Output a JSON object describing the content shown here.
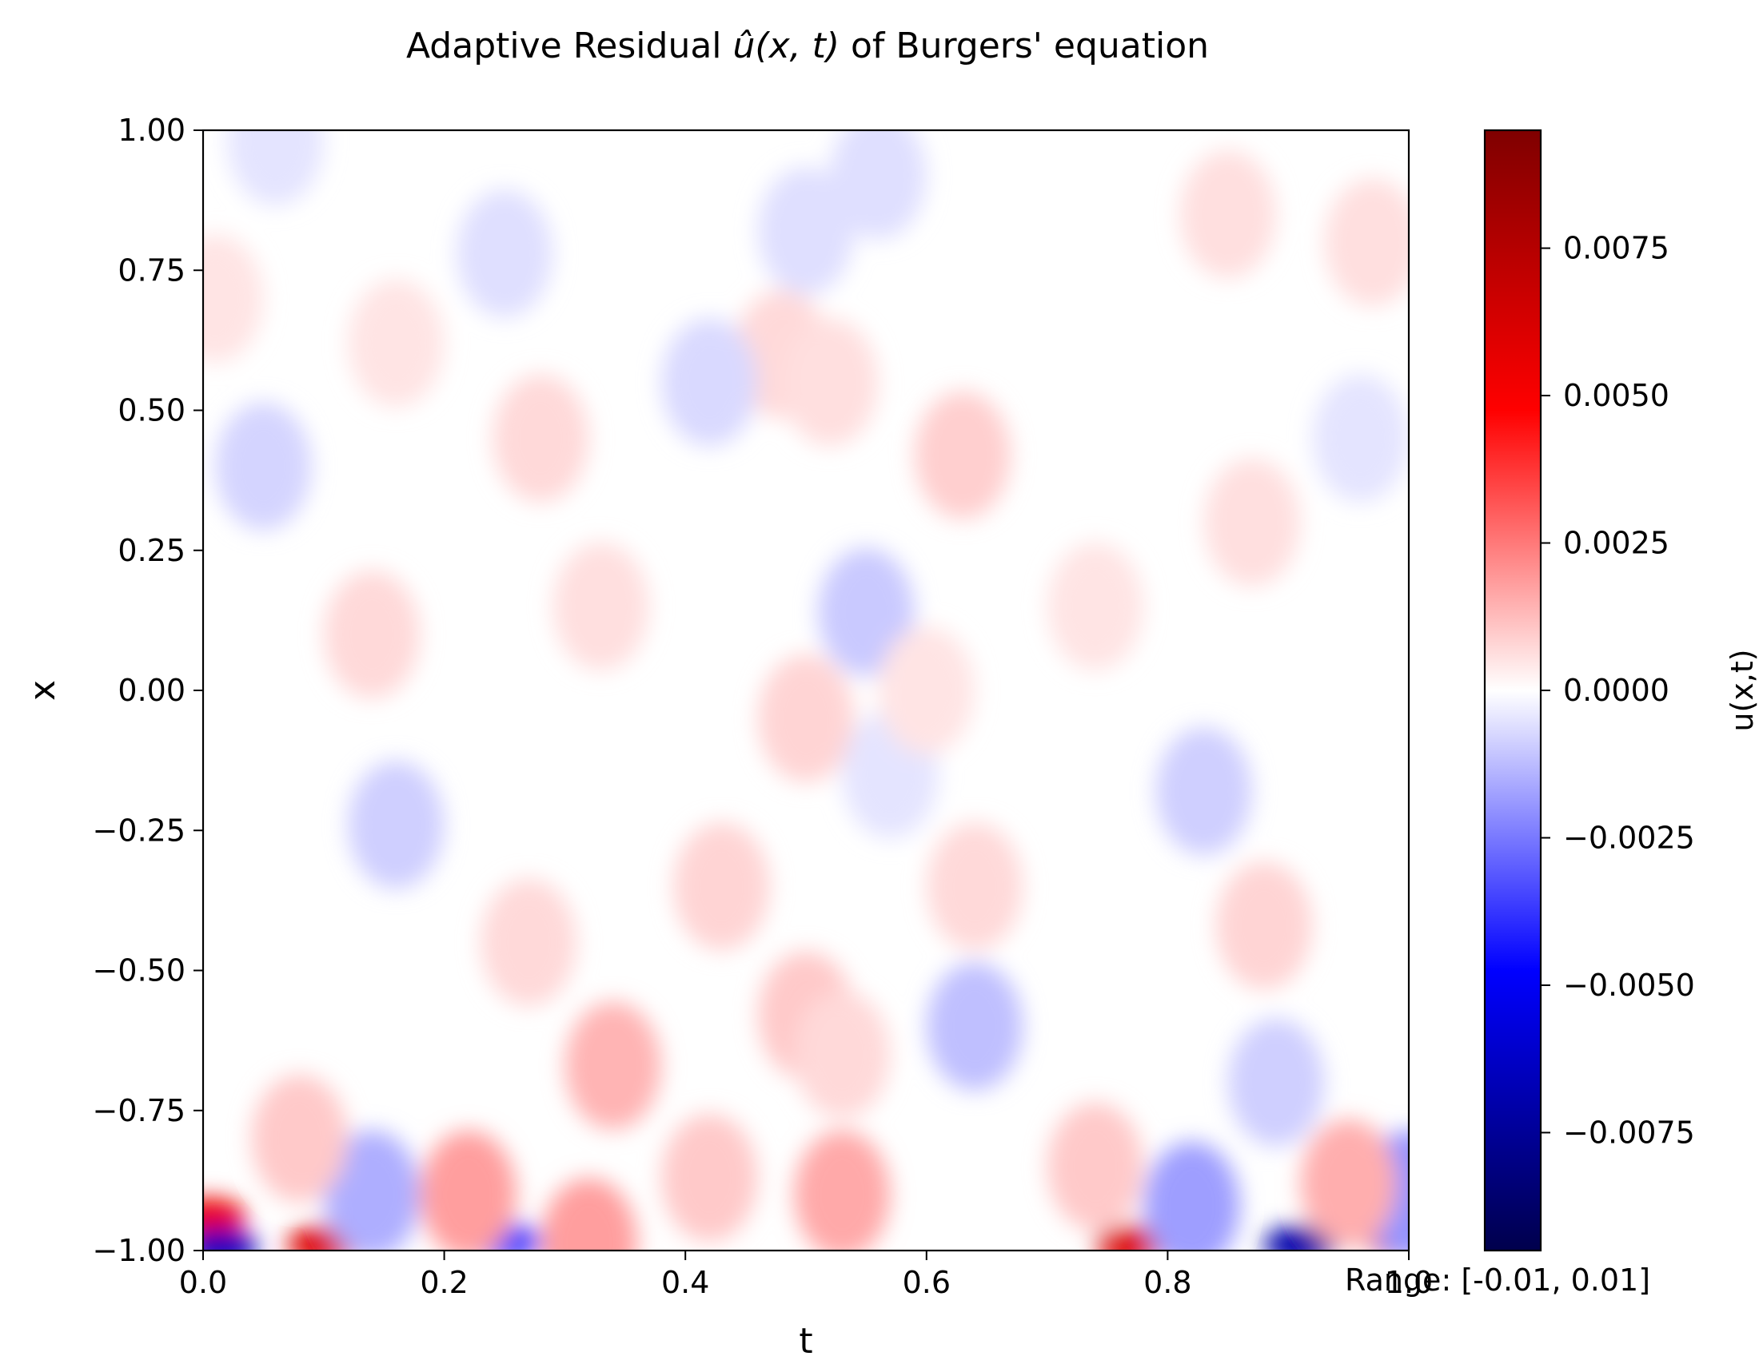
{
  "chart_data": {
    "type": "heatmap",
    "title_prefix": "Adaptive Residual ",
    "title_math": "û(x, t)",
    "title_suffix": " of Burgers' equation",
    "xlabel": "t",
    "ylabel": "x",
    "xlim": [
      0.0,
      1.0
    ],
    "ylim": [
      -1.0,
      1.0
    ],
    "x_ticks": [
      {
        "value": 0.0,
        "label": "0.0"
      },
      {
        "value": 0.2,
        "label": "0.2"
      },
      {
        "value": 0.4,
        "label": "0.4"
      },
      {
        "value": 0.6,
        "label": "0.6"
      },
      {
        "value": 0.8,
        "label": "0.8"
      },
      {
        "value": 1.0,
        "label": "1.0"
      }
    ],
    "y_ticks": [
      {
        "value": 1.0,
        "label": "1.00"
      },
      {
        "value": 0.75,
        "label": "0.75"
      },
      {
        "value": 0.5,
        "label": "0.50"
      },
      {
        "value": 0.25,
        "label": "0.25"
      },
      {
        "value": 0.0,
        "label": "0.00"
      },
      {
        "value": -0.25,
        "label": "−0.25"
      },
      {
        "value": -0.5,
        "label": "−0.50"
      },
      {
        "value": -0.75,
        "label": "−0.75"
      },
      {
        "value": -1.0,
        "label": "−1.00"
      }
    ],
    "colorbar": {
      "label": "u(x,t)",
      "colormap": "seismic",
      "vmin": -0.0095,
      "vmax": 0.0095,
      "ticks": [
        {
          "value": 0.0075,
          "label": "0.0075"
        },
        {
          "value": 0.005,
          "label": "0.0050"
        },
        {
          "value": 0.0025,
          "label": "0.0025"
        },
        {
          "value": 0.0,
          "label": "0.0000"
        },
        {
          "value": -0.0025,
          "label": "−0.0025"
        },
        {
          "value": -0.005,
          "label": "−0.0050"
        },
        {
          "value": -0.0075,
          "label": "−0.0075"
        }
      ],
      "colors": [
        "#00004c",
        "#0000ff",
        "#ffffff",
        "#ff0000",
        "#7f0000"
      ]
    },
    "annotation": "Range: [-0.01, 0.01]",
    "blobs": [
      {
        "t": 0.005,
        "x": -0.94,
        "value": 0.0055
      },
      {
        "t": 0.015,
        "x": -0.995,
        "value": -0.0065
      },
      {
        "t": 0.1,
        "x": -0.99,
        "value": 0.006
      },
      {
        "t": 0.25,
        "x": -0.985,
        "value": -0.0035
      },
      {
        "t": 0.32,
        "x": -0.985,
        "value": 0.0018
      },
      {
        "t": 0.77,
        "x": -0.99,
        "value": 0.006
      },
      {
        "t": 0.91,
        "x": -0.99,
        "value": -0.007
      },
      {
        "t": 0.995,
        "x": -0.98,
        "value": 0.006
      },
      {
        "t": 1.0,
        "x": -0.9,
        "value": -0.002
      },
      {
        "t": 0.22,
        "x": -0.9,
        "value": 0.0018
      },
      {
        "t": 0.14,
        "x": -0.9,
        "value": -0.0015
      },
      {
        "t": 0.53,
        "x": -0.9,
        "value": 0.0016
      },
      {
        "t": 0.42,
        "x": -0.87,
        "value": 0.001
      },
      {
        "t": 0.74,
        "x": -0.85,
        "value": 0.001
      },
      {
        "t": 0.82,
        "x": -0.92,
        "value": -0.0018
      },
      {
        "t": 0.95,
        "x": -0.88,
        "value": 0.0015
      },
      {
        "t": 0.08,
        "x": -0.8,
        "value": 0.001
      },
      {
        "t": 0.34,
        "x": -0.67,
        "value": 0.0014
      },
      {
        "t": 0.5,
        "x": -0.58,
        "value": 0.001
      },
      {
        "t": 0.64,
        "x": -0.6,
        "value": -0.0012
      },
      {
        "t": 0.64,
        "x": -0.35,
        "value": 0.0007
      },
      {
        "t": 0.89,
        "x": -0.7,
        "value": -0.0009
      },
      {
        "t": 0.16,
        "x": -0.24,
        "value": -0.0009
      },
      {
        "t": 0.27,
        "x": -0.45,
        "value": 0.0007
      },
      {
        "t": 0.43,
        "x": -0.35,
        "value": 0.0008
      },
      {
        "t": 0.53,
        "x": -0.65,
        "value": 0.0007
      },
      {
        "t": 0.83,
        "x": -0.18,
        "value": -0.0009
      },
      {
        "t": 0.88,
        "x": -0.42,
        "value": 0.0008
      },
      {
        "t": 0.5,
        "x": -0.05,
        "value": 0.0008
      },
      {
        "t": 0.55,
        "x": 0.14,
        "value": -0.001
      },
      {
        "t": 0.48,
        "x": 0.6,
        "value": 0.0007
      },
      {
        "t": 0.42,
        "x": 0.55,
        "value": -0.0007
      },
      {
        "t": 0.52,
        "x": 0.55,
        "value": 0.0006
      },
      {
        "t": 0.63,
        "x": 0.42,
        "value": 0.0009
      },
      {
        "t": 0.05,
        "x": 0.4,
        "value": -0.0008
      },
      {
        "t": 0.14,
        "x": 0.1,
        "value": 0.0007
      },
      {
        "t": 0.33,
        "x": 0.15,
        "value": 0.0006
      },
      {
        "t": 0.28,
        "x": 0.45,
        "value": 0.0007
      },
      {
        "t": 0.16,
        "x": 0.62,
        "value": 0.0005
      },
      {
        "t": 0.25,
        "x": 0.78,
        "value": -0.0006
      },
      {
        "t": 0.74,
        "x": 0.15,
        "value": 0.0005
      },
      {
        "t": 0.87,
        "x": 0.3,
        "value": 0.0006
      },
      {
        "t": 0.85,
        "x": 0.85,
        "value": 0.0006
      },
      {
        "t": 0.97,
        "x": 0.8,
        "value": 0.0006
      },
      {
        "t": 0.96,
        "x": 0.45,
        "value": -0.0005
      },
      {
        "t": 0.56,
        "x": 0.92,
        "value": -0.0006
      },
      {
        "t": 0.5,
        "x": 0.82,
        "value": -0.0006
      },
      {
        "t": 0.06,
        "x": 0.98,
        "value": -0.0005
      },
      {
        "t": 0.01,
        "x": 0.7,
        "value": 0.0005
      },
      {
        "t": 0.57,
        "x": -0.15,
        "value": -0.0005
      },
      {
        "t": 0.6,
        "x": 0.0,
        "value": 0.0005
      }
    ]
  }
}
